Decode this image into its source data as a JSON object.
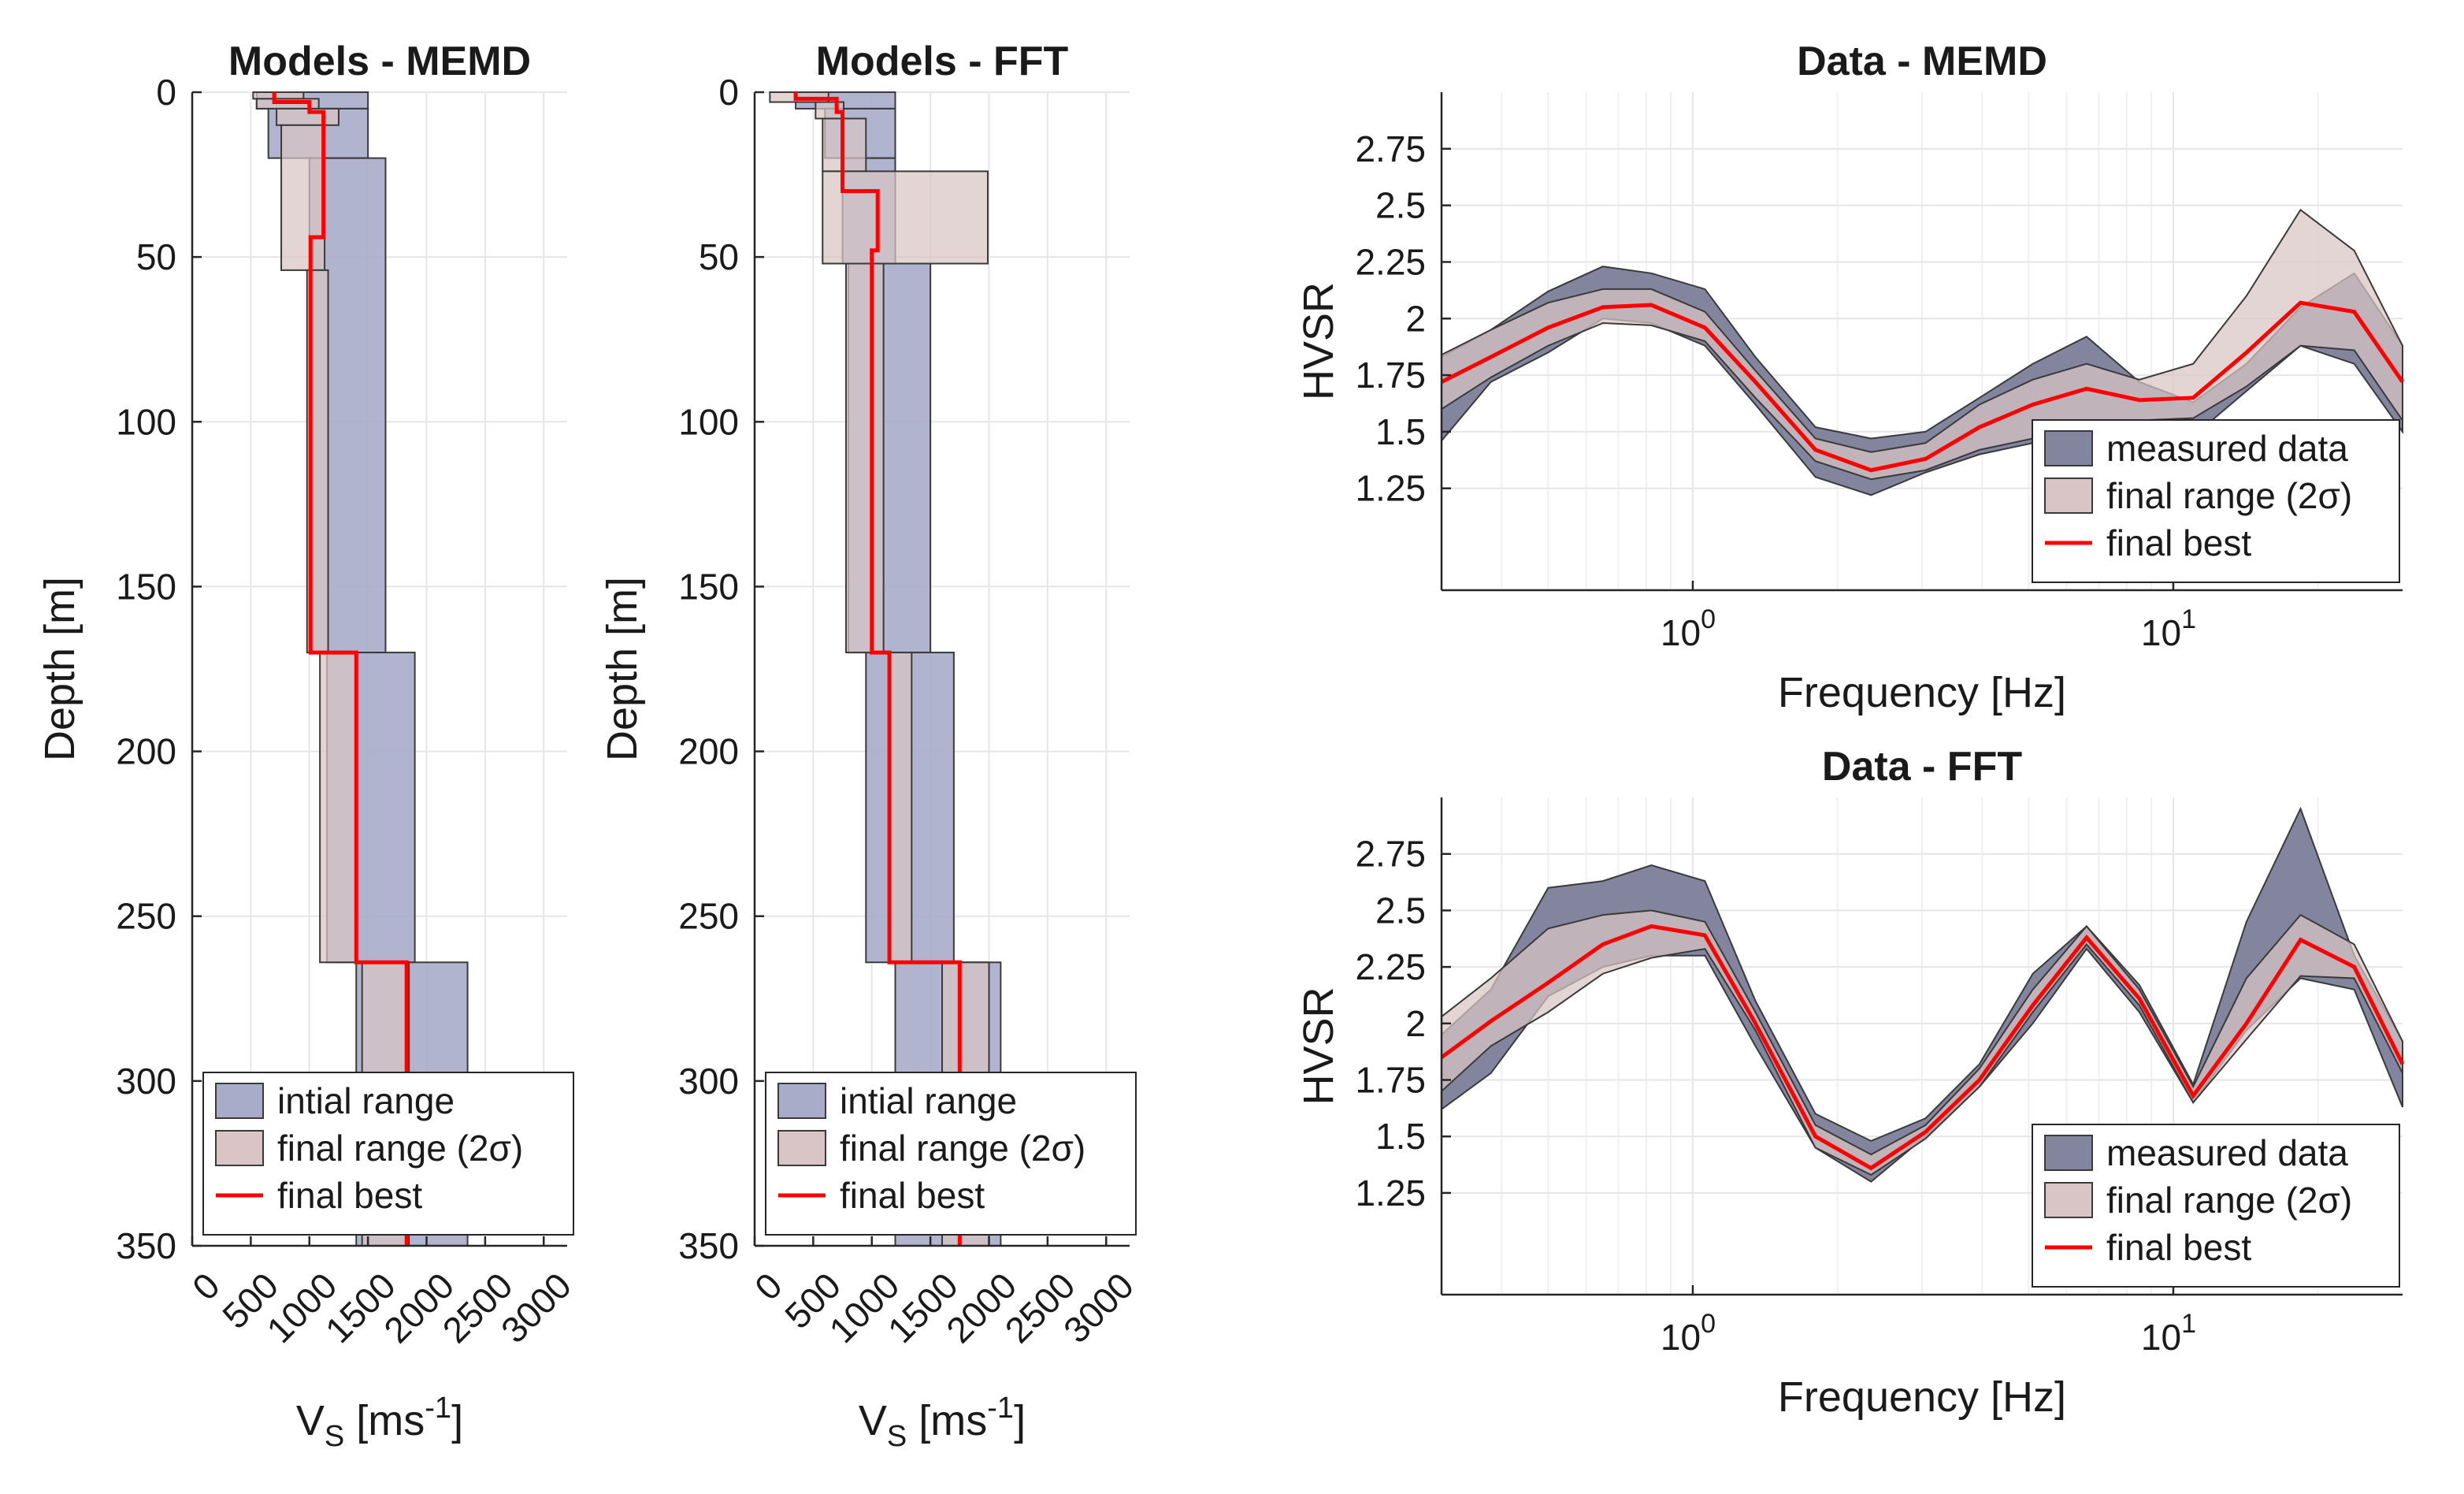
{
  "colors": {
    "initial_range": "#a9acc9",
    "final_range": "#d9c5c5",
    "measured_data": "#83859f",
    "final_best": "#ff0000",
    "grid": "#e6e6e6",
    "axis": "#262626"
  },
  "chart_data": [
    {
      "id": "models-memd",
      "type": "area",
      "title": "Models - MEMD",
      "xlabel": "V",
      "xlabel_sub": "S",
      "xlabel_units": " [ms",
      "xlabel_sup": "-1",
      "xlabel_end": "]",
      "ylabel": "Depth [m]",
      "xlim": [
        0,
        3200
      ],
      "ylim": [
        0,
        350
      ],
      "y_reversed": true,
      "xticks": [
        0,
        500,
        1000,
        1500,
        2000,
        2500,
        3000
      ],
      "xtick_labels": [
        "0",
        "500",
        "1000",
        "1500",
        "2000",
        "2500",
        "3000"
      ],
      "yticks": [
        0,
        50,
        100,
        150,
        200,
        250,
        300,
        350
      ],
      "ytick_labels": [
        "0",
        "50",
        "100",
        "150",
        "200",
        "250",
        "300",
        "350"
      ],
      "grid": true,
      "legend_position": "bottom-left",
      "legend": [
        "intial range",
        "final range (2σ)",
        "final best"
      ],
      "series": [
        {
          "name": "intial range",
          "kind": "range",
          "layers": [
            [
              0,
              5,
              550,
              1500
            ],
            [
              5,
              20,
              650,
              1500
            ],
            [
              20,
              170,
              1000,
              1650
            ],
            [
              170,
              264,
              1150,
              1900
            ],
            [
              264,
              350,
              1400,
              2350
            ]
          ]
        },
        {
          "name": "final range (2σ)",
          "kind": "range",
          "layers": [
            [
              0,
              2,
              520,
              950
            ],
            [
              2,
              5,
              550,
              1080
            ],
            [
              5,
              10,
              720,
              1250
            ],
            [
              10,
              54,
              760,
              1130
            ],
            [
              54,
              170,
              980,
              1160
            ],
            [
              170,
              264,
              1090,
              1400
            ],
            [
              264,
              350,
              1450,
              1850
            ]
          ]
        },
        {
          "name": "final best",
          "kind": "profile",
          "layers": [
            [
              0,
              3,
              700
            ],
            [
              3,
              6,
              1000
            ],
            [
              6,
              44,
              1120
            ],
            [
              44,
              170,
              1010
            ],
            [
              170,
              264,
              1400
            ],
            [
              264,
              350,
              1830
            ]
          ]
        }
      ]
    },
    {
      "id": "models-fft",
      "type": "area",
      "title": "Models - FFT",
      "xlabel": "V",
      "xlabel_sub": "S",
      "xlabel_units": " [ms",
      "xlabel_sup": "-1",
      "xlabel_end": "]",
      "ylabel": "Depth [m]",
      "xlim": [
        0,
        3200
      ],
      "ylim": [
        0,
        350
      ],
      "y_reversed": true,
      "xticks": [
        0,
        500,
        1000,
        1500,
        2000,
        2500,
        3000
      ],
      "xtick_labels": [
        "0",
        "500",
        "1000",
        "1500",
        "2000",
        "2500",
        "3000"
      ],
      "yticks": [
        0,
        50,
        100,
        150,
        200,
        250,
        300,
        350
      ],
      "ytick_labels": [
        "0",
        "50",
        "100",
        "150",
        "200",
        "250",
        "300",
        "350"
      ],
      "grid": true,
      "legend_position": "bottom-left",
      "legend": [
        "intial range",
        "final range (2σ)",
        "final best"
      ],
      "series": [
        {
          "name": "intial range",
          "kind": "range",
          "layers": [
            [
              0,
              5,
              350,
              1200
            ],
            [
              5,
              20,
              600,
              1200
            ],
            [
              20,
              52,
              750,
              1200
            ],
            [
              52,
              170,
              800,
              1500
            ],
            [
              170,
              264,
              950,
              1700
            ],
            [
              264,
              350,
              1200,
              2100
            ]
          ]
        },
        {
          "name": "final range (2σ)",
          "kind": "range",
          "layers": [
            [
              0,
              3,
              130,
              630
            ],
            [
              3,
              8,
              520,
              760
            ],
            [
              8,
              24,
              580,
              950
            ],
            [
              24,
              52,
              580,
              1990
            ],
            [
              52,
              170,
              780,
              1100
            ],
            [
              170,
              264,
              1150,
              1340
            ],
            [
              264,
              350,
              1600,
              2000
            ]
          ]
        },
        {
          "name": "final best",
          "kind": "profile",
          "layers": [
            [
              0,
              2,
              350
            ],
            [
              2,
              6,
              700
            ],
            [
              6,
              30,
              750
            ],
            [
              30,
              48,
              1050
            ],
            [
              48,
              170,
              1000
            ],
            [
              170,
              264,
              1150
            ],
            [
              264,
              350,
              1750
            ]
          ]
        }
      ]
    },
    {
      "id": "data-memd",
      "type": "area",
      "title": "Data - MEMD",
      "xlabel": "Frequency [Hz]",
      "ylabel": "HVSR",
      "x_scale": "log",
      "xlim": [
        0.3,
        30
      ],
      "ylim": [
        0.8,
        3.0
      ],
      "xticks": [
        1,
        10
      ],
      "xtick_base": "10",
      "xtick_exponents": [
        "0",
        "1"
      ],
      "yticks": [
        1.25,
        1.5,
        1.75,
        2.0,
        2.25,
        2.5,
        2.75
      ],
      "ytick_labels": [
        "1.25",
        "1.5",
        "1.75",
        "2",
        "2.25",
        "2.5",
        "2.75"
      ],
      "grid": true,
      "legend_position": "bottom-right",
      "legend": [
        "measured data",
        "final range (2σ)",
        "final best"
      ],
      "x": [
        0.3,
        0.38,
        0.5,
        0.65,
        0.82,
        1.06,
        1.35,
        1.8,
        2.35,
        3.05,
        3.95,
        5.1,
        6.6,
        8.5,
        11,
        14.2,
        18.4,
        23.8,
        30
      ],
      "series": [
        {
          "name": "measured data",
          "kind": "band",
          "upper": [
            1.83,
            1.95,
            2.12,
            2.23,
            2.2,
            2.13,
            1.83,
            1.52,
            1.47,
            1.5,
            1.65,
            1.8,
            1.92,
            1.72,
            1.63,
            1.8,
            2.05,
            2.2,
            1.88
          ],
          "lower": [
            1.46,
            1.72,
            1.85,
            2.0,
            1.98,
            1.88,
            1.62,
            1.3,
            1.22,
            1.32,
            1.4,
            1.45,
            1.5,
            1.53,
            1.48,
            1.68,
            1.88,
            1.8,
            1.5
          ]
        },
        {
          "name": "final range (2σ)",
          "kind": "band",
          "upper": [
            1.84,
            1.95,
            2.07,
            2.13,
            2.13,
            2.03,
            1.77,
            1.47,
            1.41,
            1.45,
            1.62,
            1.73,
            1.8,
            1.73,
            1.8,
            2.1,
            2.48,
            2.3,
            1.88
          ],
          "lower": [
            1.6,
            1.74,
            1.88,
            1.98,
            1.97,
            1.9,
            1.65,
            1.37,
            1.29,
            1.33,
            1.42,
            1.47,
            1.52,
            1.55,
            1.56,
            1.7,
            1.88,
            1.86,
            1.55
          ]
        },
        {
          "name": "final best",
          "kind": "line",
          "values": [
            1.72,
            1.83,
            1.96,
            2.05,
            2.06,
            1.96,
            1.72,
            1.42,
            1.33,
            1.38,
            1.52,
            1.62,
            1.69,
            1.64,
            1.65,
            1.85,
            2.07,
            2.03,
            1.72
          ]
        }
      ]
    },
    {
      "id": "data-fft",
      "type": "area",
      "title": "Data - FFT",
      "xlabel": "Frequency [Hz]",
      "ylabel": "HVSR",
      "x_scale": "log",
      "xlim": [
        0.3,
        30
      ],
      "ylim": [
        0.8,
        3.0
      ],
      "xticks": [
        1,
        10
      ],
      "xtick_base": "10",
      "xtick_exponents": [
        "0",
        "1"
      ],
      "yticks": [
        1.25,
        1.5,
        1.75,
        2.0,
        2.25,
        2.5,
        2.75
      ],
      "ytick_labels": [
        "1.25",
        "1.5",
        "1.75",
        "2",
        "2.25",
        "2.5",
        "2.75"
      ],
      "grid": true,
      "legend_position": "bottom-right",
      "legend": [
        "measured data",
        "final range (2σ)",
        "final best"
      ],
      "x": [
        0.3,
        0.38,
        0.5,
        0.65,
        0.82,
        1.06,
        1.35,
        1.8,
        2.35,
        3.05,
        3.95,
        5.1,
        6.6,
        8.5,
        11,
        14.2,
        18.4,
        23.8,
        30
      ],
      "series": [
        {
          "name": "measured data",
          "kind": "band",
          "upper": [
            1.95,
            2.15,
            2.6,
            2.63,
            2.7,
            2.63,
            2.1,
            1.6,
            1.48,
            1.58,
            1.82,
            2.22,
            2.43,
            2.17,
            1.73,
            2.45,
            2.95,
            2.3,
            1.92
          ],
          "lower": [
            1.62,
            1.78,
            2.12,
            2.25,
            2.3,
            2.3,
            1.9,
            1.45,
            1.3,
            1.5,
            1.72,
            2.0,
            2.33,
            2.05,
            1.65,
            1.97,
            2.2,
            2.15,
            1.63
          ]
        },
        {
          "name": "final range (2σ)",
          "kind": "band",
          "upper": [
            2.03,
            2.2,
            2.42,
            2.48,
            2.5,
            2.45,
            2.05,
            1.55,
            1.42,
            1.55,
            1.8,
            2.15,
            2.43,
            2.15,
            1.72,
            2.2,
            2.48,
            2.35,
            1.92
          ],
          "lower": [
            1.7,
            1.9,
            2.05,
            2.22,
            2.29,
            2.33,
            1.97,
            1.45,
            1.33,
            1.49,
            1.72,
            2.05,
            2.35,
            2.08,
            1.65,
            1.93,
            2.21,
            2.2,
            1.78
          ]
        },
        {
          "name": "final best",
          "kind": "line",
          "values": [
            1.85,
            2.01,
            2.18,
            2.35,
            2.43,
            2.39,
            2.0,
            1.5,
            1.36,
            1.52,
            1.75,
            2.08,
            2.38,
            2.11,
            1.68,
            2.0,
            2.37,
            2.25,
            1.82
          ]
        }
      ]
    }
  ]
}
